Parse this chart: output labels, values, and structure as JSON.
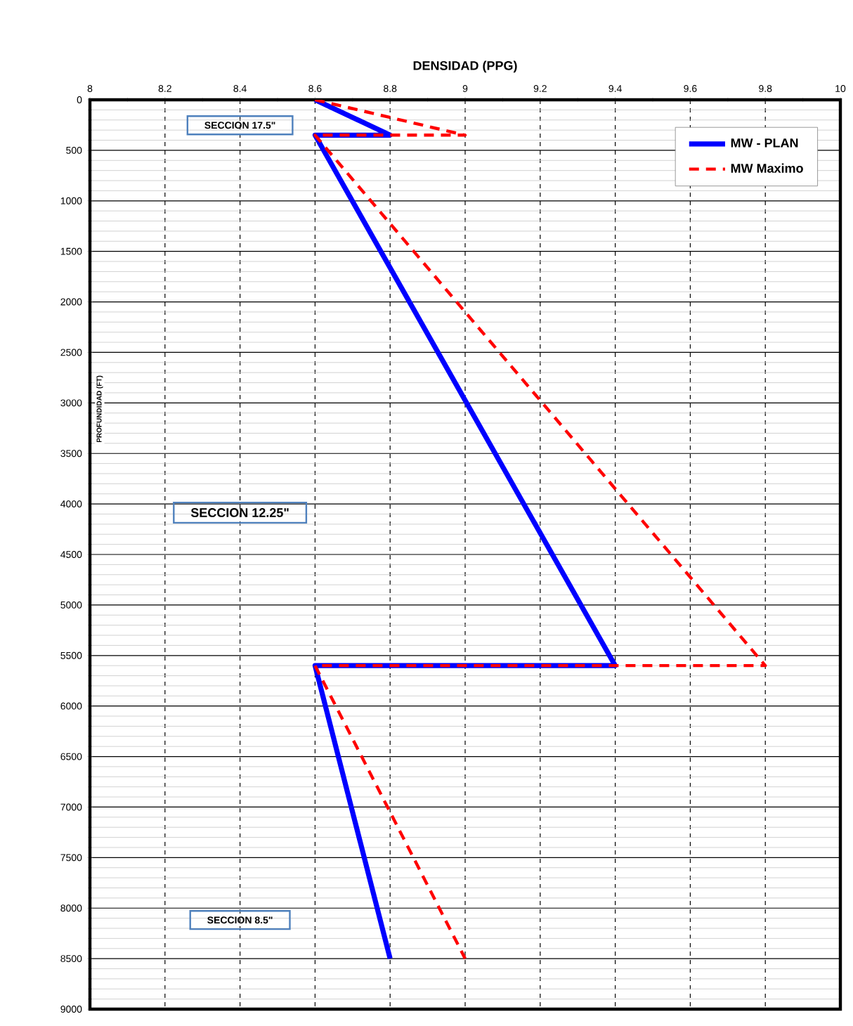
{
  "chart_data": {
    "type": "line",
    "xlabel": "DENSIDAD (PPG)",
    "ylabel": "PROFUNDIDAD (FT)",
    "xlim": [
      8,
      10
    ],
    "xticks": [
      8,
      8.2,
      8.4,
      8.6,
      8.8,
      9,
      9.2,
      9.4,
      9.6,
      9.8,
      10
    ],
    "ylim": [
      9000,
      0
    ],
    "yticks": [
      0,
      500,
      1000,
      1500,
      2000,
      2500,
      3000,
      3500,
      4000,
      4500,
      5000,
      5500,
      6000,
      6500,
      7000,
      7500,
      8000,
      8500,
      9000
    ],
    "grid": true,
    "legend": "top right",
    "annotations": [
      "SECCION 17.5\"",
      "SECCION  12.25\"",
      "SECCION  8.5\""
    ],
    "series": [
      {
        "name": "MW - PLAN",
        "color": "#0000ff",
        "line_style": "solid",
        "x": [
          8.6,
          8.8,
          8.6,
          9.4,
          8.6,
          8.8
        ],
        "values": [
          0,
          350,
          350,
          5600,
          5600,
          8500
        ]
      },
      {
        "name": "MW Maximo",
        "color": "#ff0000",
        "line_style": "dashed",
        "x": [
          8.6,
          9.0,
          8.6,
          9.8,
          8.6,
          9.0
        ],
        "values": [
          0,
          350,
          350,
          5600,
          5600,
          8500
        ]
      }
    ]
  }
}
